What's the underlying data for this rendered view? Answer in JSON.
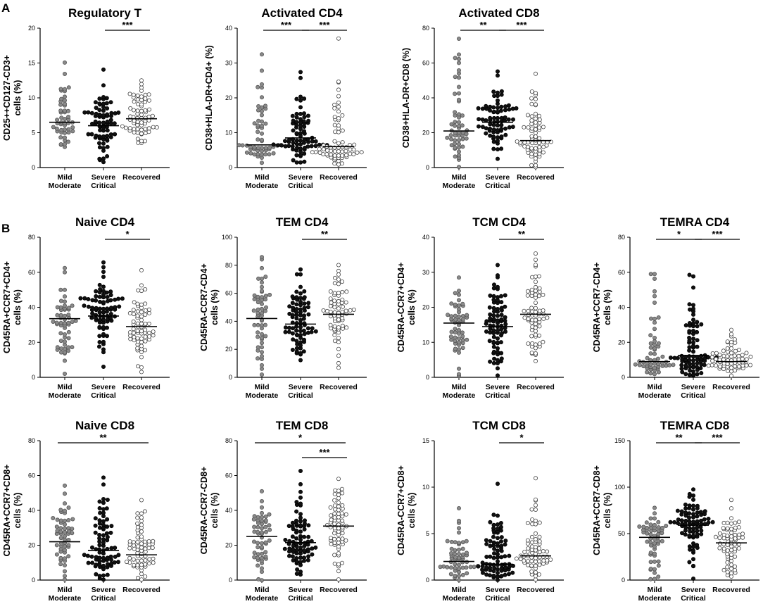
{
  "panel_labels": [
    "A",
    "B"
  ],
  "groups": [
    {
      "line1": "Mild",
      "line2": "Moderate"
    },
    {
      "line1": "Severe",
      "line2": "Critical"
    },
    {
      "line1": "Recovered",
      "line2": ""
    }
  ],
  "group_styles": {
    "mild": "#8a8a8a",
    "severe": "#111111",
    "recovered": "#ffffff"
  },
  "chart_data": [
    {
      "type": "scatter",
      "panel": "A",
      "title": "Regulatory T",
      "ylabel": [
        "CD25++CD127-CD3+",
        "cells (%)"
      ],
      "ylim": [
        0,
        20
      ],
      "yticks": [
        0,
        5,
        10,
        15,
        20
      ],
      "medians": [
        6.5,
        6,
        7
      ],
      "n": [
        50,
        75,
        68
      ],
      "ranges": [
        [
          3,
          15.1
        ],
        [
          0.8,
          14
        ],
        [
          3.5,
          12.5
        ]
      ],
      "significance": [
        {
          "from": 1,
          "to": 2,
          "label": "***"
        }
      ]
    },
    {
      "type": "scatter",
      "panel": "A",
      "title": "Activated CD4",
      "ylabel": [
        "CD38+HLA-DR+CD4+ (%)"
      ],
      "ylim": [
        0,
        40
      ],
      "yticks": [
        0,
        10,
        20,
        30,
        40
      ],
      "medians": [
        6.5,
        8.5,
        6
      ],
      "n": [
        55,
        78,
        68
      ],
      "ranges": [
        [
          1.5,
          32.5
        ],
        [
          1.5,
          27.5
        ],
        [
          1,
          37
        ]
      ],
      "significance": [
        {
          "from": 0,
          "to": 1,
          "label": "***"
        },
        {
          "from": 1,
          "to": 2,
          "label": "***"
        }
      ]
    },
    {
      "type": "scatter",
      "panel": "A",
      "title": "Activated CD8",
      "ylabel": [
        "CD38+HLA-DR+CD8 (%)"
      ],
      "ylim": [
        0,
        80
      ],
      "yticks": [
        0,
        20,
        40,
        60,
        80
      ],
      "medians": [
        21,
        26,
        15.5
      ],
      "n": [
        55,
        78,
        68
      ],
      "ranges": [
        [
          0.5,
          74
        ],
        [
          5,
          55
        ],
        [
          0.5,
          54
        ]
      ],
      "significance": [
        {
          "from": 0,
          "to": 1,
          "label": "**"
        },
        {
          "from": 1,
          "to": 2,
          "label": "***"
        }
      ]
    },
    {
      "type": "scatter",
      "panel": "B",
      "title": "Naive CD4",
      "ylabel": [
        "CD45RA+CCR7+CD4+",
        "cells (%)"
      ],
      "ylim": [
        0,
        80
      ],
      "yticks": [
        0,
        20,
        40,
        60,
        80
      ],
      "medians": [
        33.5,
        35,
        29
      ],
      "n": [
        55,
        82,
        68
      ],
      "ranges": [
        [
          2,
          62.5
        ],
        [
          6,
          65.5
        ],
        [
          3,
          61
        ]
      ],
      "significance": [
        {
          "from": 1,
          "to": 2,
          "label": "*"
        }
      ]
    },
    {
      "type": "scatter",
      "panel": "B",
      "title": "TEM CD4",
      "ylabel": [
        "CD45RA-CCR7-CD4+",
        "cells (%)"
      ],
      "ylim": [
        0,
        100
      ],
      "yticks": [
        0,
        20,
        40,
        60,
        80,
        100
      ],
      "medians": [
        42,
        38,
        45
      ],
      "n": [
        55,
        82,
        68
      ],
      "ranges": [
        [
          2,
          86
        ],
        [
          12,
          77
        ],
        [
          7,
          80
        ]
      ],
      "significance": [
        {
          "from": 1,
          "to": 2,
          "label": "**"
        }
      ]
    },
    {
      "type": "scatter",
      "panel": "B",
      "title": "TCM CD4",
      "ylabel": [
        "CD45RA-CCR7+CD4+",
        "cells (%)"
      ],
      "ylim": [
        0,
        40
      ],
      "yticks": [
        0,
        10,
        20,
        30,
        40
      ],
      "medians": [
        15.5,
        14.5,
        18
      ],
      "n": [
        55,
        82,
        68
      ],
      "ranges": [
        [
          0.5,
          28.5
        ],
        [
          0.5,
          32
        ],
        [
          4.5,
          35.5
        ]
      ],
      "significance": [
        {
          "from": 1,
          "to": 2,
          "label": "**"
        }
      ]
    },
    {
      "type": "scatter",
      "panel": "B",
      "title": "TEMRA CD4",
      "ylabel": [
        "CD45RA+CCR7-CD4+",
        "cells (%)"
      ],
      "ylim": [
        0,
        80
      ],
      "yticks": [
        0,
        20,
        40,
        60,
        80
      ],
      "medians": [
        9,
        12.5,
        9
      ],
      "n": [
        55,
        82,
        68
      ],
      "ranges": [
        [
          2,
          59
        ],
        [
          1,
          58.5
        ],
        [
          1,
          27
        ]
      ],
      "significance": [
        {
          "from": 0,
          "to": 1,
          "label": "*"
        },
        {
          "from": 1,
          "to": 2,
          "label": "***"
        }
      ]
    },
    {
      "type": "scatter",
      "panel": "B",
      "title": "Naive CD8",
      "ylabel": [
        "CD45RA+CCR7+CD8+",
        "cells (%)"
      ],
      "ylim": [
        0,
        80
      ],
      "yticks": [
        0,
        20,
        40,
        60,
        80
      ],
      "medians": [
        22,
        17,
        14.5
      ],
      "n": [
        55,
        82,
        68
      ],
      "ranges": [
        [
          0.5,
          54
        ],
        [
          0.5,
          59
        ],
        [
          0.5,
          46
        ]
      ],
      "significance": [
        {
          "from": 0,
          "to": 2,
          "label": "**"
        }
      ]
    },
    {
      "type": "scatter",
      "panel": "B",
      "title": "TEM CD8",
      "ylabel": [
        "CD45RA-CCR7-CD8+",
        "cells (%)"
      ],
      "ylim": [
        0,
        80
      ],
      "yticks": [
        0,
        20,
        40,
        60,
        80
      ],
      "medians": [
        25,
        21.5,
        31
      ],
      "n": [
        55,
        82,
        68
      ],
      "ranges": [
        [
          0,
          51
        ],
        [
          3,
          62.5
        ],
        [
          0.5,
          58
        ]
      ],
      "significance": [
        {
          "from": 0,
          "to": 2,
          "label": "*"
        },
        {
          "from": 1,
          "to": 2,
          "label": "***"
        }
      ]
    },
    {
      "type": "scatter",
      "panel": "B",
      "title": "TCM CD8",
      "ylabel": [
        "CD45RA-CCR7+CD8+",
        "cells (%)"
      ],
      "ylim": [
        0,
        15
      ],
      "yticks": [
        0,
        5,
        10,
        15
      ],
      "medians": [
        2,
        1.7,
        2.6
      ],
      "n": [
        55,
        82,
        68
      ],
      "ranges": [
        [
          0,
          7.7
        ],
        [
          0,
          10.4
        ],
        [
          0,
          11
        ]
      ],
      "significance": [
        {
          "from": 1,
          "to": 2,
          "label": "*"
        }
      ]
    },
    {
      "type": "scatter",
      "panel": "B",
      "title": "TEMRA CD8",
      "ylabel": [
        "CD45RA+CCR7-CD8+",
        "cells (%)"
      ],
      "ylim": [
        0,
        150
      ],
      "yticks": [
        0,
        50,
        100,
        150
      ],
      "medians": [
        46,
        59,
        40
      ],
      "n": [
        55,
        82,
        68
      ],
      "ranges": [
        [
          1,
          78
        ],
        [
          2,
          97
        ],
        [
          4,
          86
        ]
      ],
      "significance": [
        {
          "from": 0,
          "to": 1,
          "label": "**"
        },
        {
          "from": 1,
          "to": 2,
          "label": "***"
        }
      ]
    }
  ]
}
